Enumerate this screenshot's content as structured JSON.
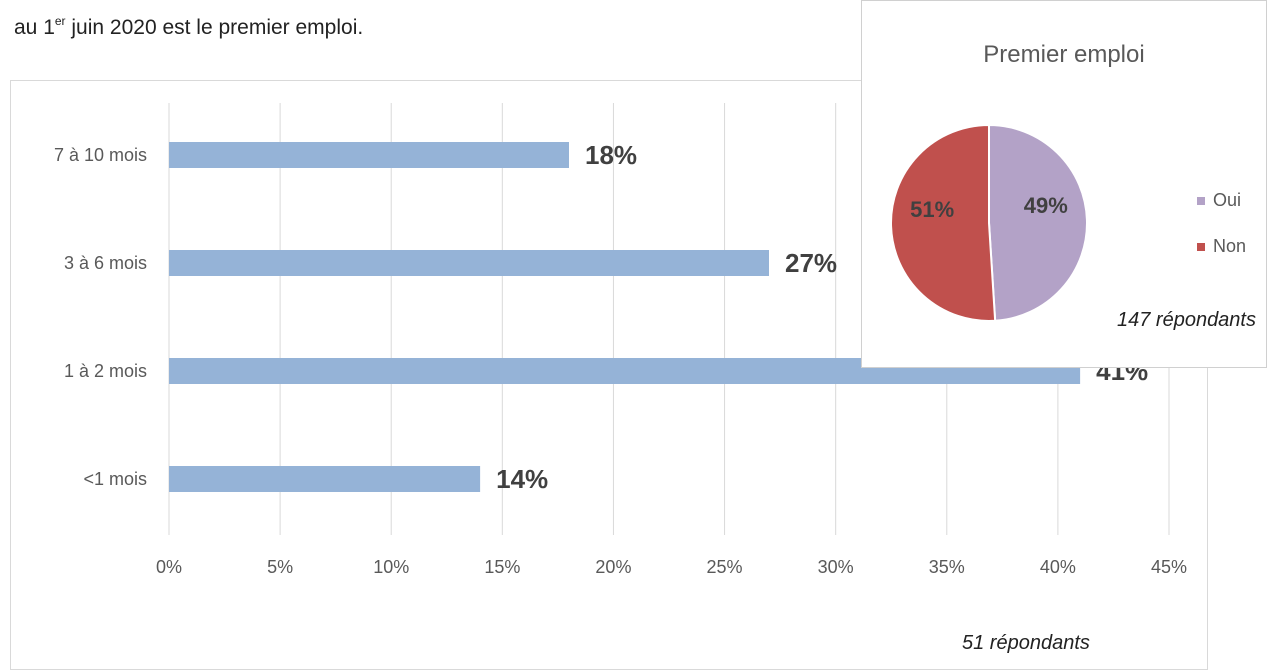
{
  "document": {
    "line_prefix": "au 1",
    "line_sup": "er",
    "line_suffix": " juin 2020 est le premier emploi."
  },
  "chart_data": [
    {
      "type": "bar",
      "orientation": "horizontal",
      "categories": [
        "<1 mois",
        "1 à 2 mois",
        "3 à 6 mois",
        "7 à 10 mois"
      ],
      "values": [
        14,
        41,
        27,
        18
      ],
      "data_labels": [
        "14%",
        "41%",
        "27%",
        "18%"
      ],
      "xlim": [
        0,
        45
      ],
      "x_ticks": [
        "0%",
        "5%",
        "10%",
        "15%",
        "20%",
        "25%",
        "30%",
        "35%",
        "40%",
        "45%"
      ],
      "grid": "vertical",
      "bar_color": "#95b3d7",
      "footnote": "51 répondants"
    },
    {
      "type": "pie",
      "title": "Premier emploi",
      "labels": [
        "Oui",
        "Non"
      ],
      "values": [
        49,
        51
      ],
      "data_labels": [
        "49%",
        "51%"
      ],
      "colors": [
        "#b3a2c7",
        "#c0504d"
      ],
      "legend_position": "right",
      "footnote": "147 répondants"
    }
  ]
}
